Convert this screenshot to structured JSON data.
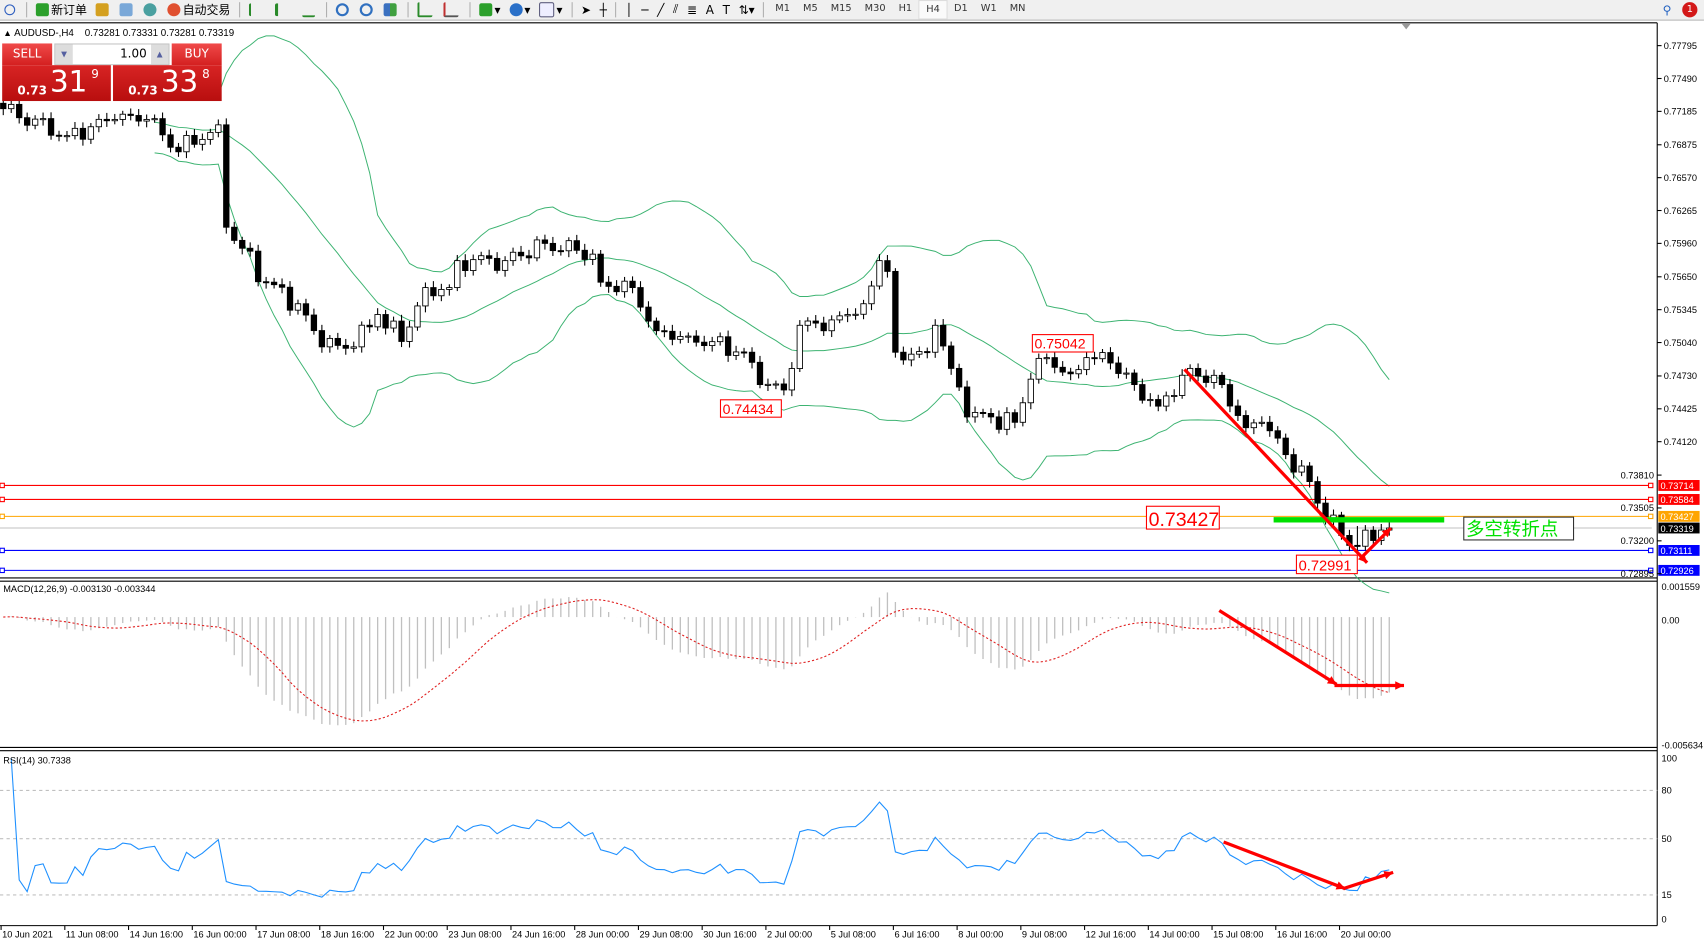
{
  "toolbar": {
    "new_order": "新订单",
    "auto_trading": "自动交易",
    "timeframes": [
      "M1",
      "M5",
      "M15",
      "M30",
      "H1",
      "H4",
      "D1",
      "W1",
      "MN"
    ],
    "active_timeframe": "H4",
    "notification_count": "1"
  },
  "chart_header": {
    "symbol": "AUDUSD-,H4",
    "ohlc": "0.73281 0.73331 0.73281 0.73319"
  },
  "one_click": {
    "sell_label": "SELL",
    "buy_label": "BUY",
    "lot": "1.00",
    "sell_price": {
      "prefix": "0.73",
      "big": "31",
      "sup": "9"
    },
    "buy_price": {
      "prefix": "0.73",
      "big": "33",
      "sup": "8"
    }
  },
  "chart_data": {
    "type": "candlestick",
    "timeframe": "H4",
    "price_axis_ticks": [
      "0.77795",
      "0.77490",
      "0.77185",
      "0.76875",
      "0.76570",
      "0.76265",
      "0.75960",
      "0.75650",
      "0.75345",
      "0.75040",
      "0.74730",
      "0.74425",
      "0.74120",
      "0.73810",
      "0.73505",
      "0.73200",
      "0.72895"
    ],
    "time_axis_ticks": [
      "10 Jun 2021",
      "11 Jun 08:00",
      "14 Jun 16:00",
      "16 Jun 00:00",
      "17 Jun 08:00",
      "18 Jun 16:00",
      "22 Jun 00:00",
      "23 Jun 08:00",
      "24 Jun 16:00",
      "28 Jun 00:00",
      "29 Jun 08:00",
      "30 Jun 16:00",
      "2 Jul 00:00",
      "5 Jul 08:00",
      "6 Jul 16:00",
      "8 Jul 00:00",
      "9 Jul 08:00",
      "12 Jul 16:00",
      "14 Jul 00:00",
      "15 Jul 08:00",
      "16 Jul 16:00",
      "20 Jul 00:00"
    ],
    "close_path": [
      [
        "2021-06-10 00:00",
        0.7721
      ],
      [
        "2021-06-11 08:00",
        0.7696
      ],
      [
        "2021-06-14 08:00",
        0.7711
      ],
      [
        "2021-06-15 00:00",
        0.7711
      ],
      [
        "2021-06-15 16:00",
        0.7681
      ],
      [
        "2021-06-16 12:00",
        0.7706
      ],
      [
        "2021-06-16 16:00",
        0.7611
      ],
      [
        "2021-06-17 12:00",
        0.756
      ],
      [
        "2021-06-18 04:00",
        0.754
      ],
      [
        "2021-06-18 16:00",
        0.75
      ],
      [
        "2021-06-21 08:00",
        0.75
      ],
      [
        "2021-06-21 20:00",
        0.753
      ],
      [
        "2021-06-22 08:00",
        0.7505
      ],
      [
        "2021-06-22 20:00",
        0.7555
      ],
      [
        "2021-06-23 08:00",
        0.7555
      ],
      [
        "2021-06-23 12:00",
        0.758
      ],
      [
        "2021-06-24 12:00",
        0.758
      ],
      [
        "2021-06-25 08:00",
        0.7596
      ],
      [
        "2021-06-28 08:00",
        0.7586
      ],
      [
        "2021-06-28 12:00",
        0.756
      ],
      [
        "2021-06-29 04:00",
        0.7555
      ],
      [
        "2021-06-29 16:00",
        0.7515
      ],
      [
        "2021-06-30 08:00",
        0.751
      ],
      [
        "2021-07-01 12:00",
        0.7495
      ],
      [
        "2021-07-01 20:00",
        0.7465
      ],
      [
        "2021-07-02 08:00",
        0.746
      ],
      [
        "2021-07-02 16:00",
        0.752
      ],
      [
        "2021-07-05 08:00",
        0.7525
      ],
      [
        "2021-07-06 00:00",
        0.754
      ],
      [
        "2021-07-06 08:00",
        0.758
      ],
      [
        "2021-07-06 12:00",
        0.757
      ],
      [
        "2021-07-06 16:00",
        0.7495
      ],
      [
        "2021-07-07 08:00",
        0.7495
      ],
      [
        "2021-07-07 12:00",
        0.752
      ],
      [
        "2021-07-07 20:00",
        0.748
      ],
      [
        "2021-07-08 04:00",
        0.7435
      ],
      [
        "2021-07-08 16:00",
        0.7435
      ],
      [
        "2021-07-09 04:00",
        0.743
      ],
      [
        "2021-07-09 12:00",
        0.747
      ],
      [
        "2021-07-09 20:00",
        0.749
      ],
      [
        "2021-07-12 08:00",
        0.7475
      ],
      [
        "2021-07-12 16:00",
        0.749
      ],
      [
        "2021-07-13 04:00",
        0.7485
      ],
      [
        "2021-07-13 16:00",
        0.7465
      ],
      [
        "2021-07-14 04:00",
        0.7445
      ],
      [
        "2021-07-14 20:00",
        0.748
      ],
      [
        "2021-07-15 12:00",
        0.7465
      ],
      [
        "2021-07-16 00:00",
        0.7425
      ],
      [
        "2021-07-16 08:00",
        0.743
      ],
      [
        "2021-07-16 20:00",
        0.74
      ],
      [
        "2021-07-19 08:00",
        0.7375
      ],
      [
        "2021-07-19 12:00",
        0.7355
      ],
      [
        "2021-07-20 00:00",
        0.7325
      ],
      [
        "2021-07-20 08:00",
        0.7315
      ],
      [
        "2021-07-20 20:00",
        0.733
      ],
      [
        "2021-07-21 00:00",
        0.73319
      ]
    ],
    "indicators": {
      "bollinger": {
        "color": "#3cb371"
      },
      "macd": {
        "label": "MACD(12,26,9) -0.003130 -0.003344",
        "axis_ticks": [
          "0.001559",
          "0.00",
          "-0.005634"
        ],
        "ylim": [
          -0.005634,
          0.001559
        ],
        "histogram_color": "#c0c0c0",
        "signal_color": "#e02020"
      },
      "rsi": {
        "label": "RSI(14) 30.7338",
        "axis_ticks": [
          "100",
          "80",
          "50",
          "15",
          "0"
        ],
        "levels": [
          80,
          50,
          15
        ],
        "ylim": [
          0,
          100
        ],
        "color": "#1e90ff"
      }
    },
    "horizontal_lines": [
      {
        "price": "0.73714",
        "color": "#ff0000"
      },
      {
        "price": "0.73584",
        "color": "#ff0000"
      },
      {
        "price": "0.73427",
        "color": "#ffa500"
      },
      {
        "price": "0.73319",
        "color": "#000000",
        "line_color": "#c0c0c0"
      },
      {
        "price": "0.73111",
        "color": "#0000ff"
      },
      {
        "price": "0.72926",
        "color": "#0000ff"
      }
    ],
    "annotations": {
      "high_label": "0.75042",
      "low_label_1": "0.74434",
      "pivot_label": "0.73427",
      "low_label_2": "0.72991",
      "pivot_text": "多空转折点",
      "pivot_line_color": "#00e000",
      "arrow_color": "#ff0000"
    }
  }
}
